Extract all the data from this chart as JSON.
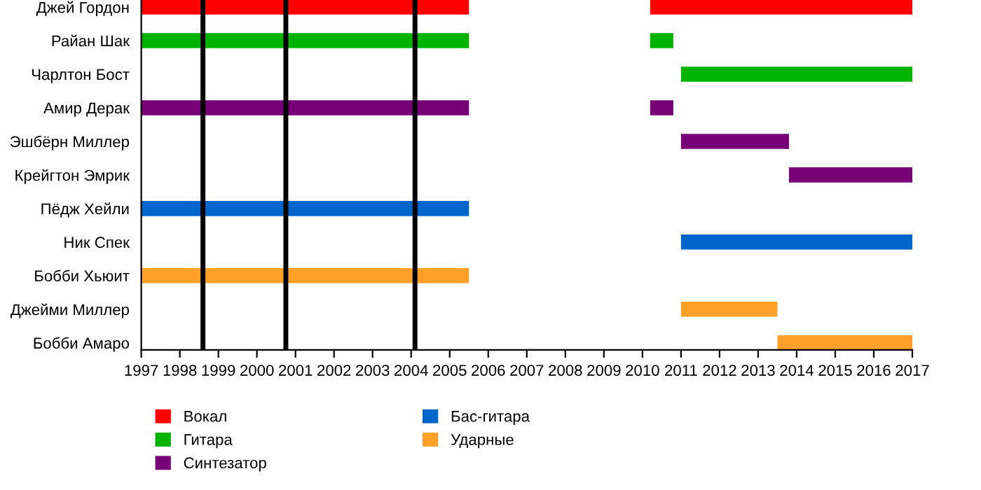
{
  "chart_data": {
    "type": "bar",
    "orientation": "horizontal",
    "categories": [
      "Джей Гордон",
      "Райан Шак",
      "Чарлтон Бост",
      "Амир Дерак",
      "Эшбёрн Миллер",
      "Крейгтон Эмрик",
      "Пёдж Хейли",
      "Ник Спек",
      "Бобби Хьюит",
      "Джейми Миллер",
      "Бобби Амаро"
    ],
    "series": [
      {
        "name": "Вокал",
        "color": "#ff0000",
        "base": [
          1997,
          null,
          null,
          null,
          null,
          null,
          null,
          null,
          null,
          null,
          null
        ],
        "values": [
          8.5,
          null,
          null,
          null,
          null,
          null,
          null,
          null,
          null,
          null,
          null
        ]
      },
      {
        "color": "#ff0000",
        "base": [
          2010.2,
          null,
          null,
          null,
          null,
          null,
          null,
          null,
          null,
          null,
          null
        ],
        "values": [
          6.8,
          null,
          null,
          null,
          null,
          null,
          null,
          null,
          null,
          null,
          null
        ]
      },
      {
        "name": "Гитара",
        "color": "#00b300",
        "base": [
          null,
          1997,
          2011,
          null,
          null,
          null,
          null,
          null,
          null,
          null,
          null
        ],
        "values": [
          null,
          8.5,
          6,
          null,
          null,
          null,
          null,
          null,
          null,
          null,
          null
        ]
      },
      {
        "color": "#00b300",
        "base": [
          null,
          2010.2,
          null,
          null,
          null,
          null,
          null,
          null,
          null,
          null,
          null
        ],
        "values": [
          null,
          0.6,
          null,
          null,
          null,
          null,
          null,
          null,
          null,
          null,
          null
        ]
      },
      {
        "name": "Синтезатор",
        "color": "#770077",
        "base": [
          null,
          null,
          null,
          1997,
          2011,
          2013.8,
          null,
          null,
          null,
          null,
          null
        ],
        "values": [
          null,
          null,
          null,
          8.5,
          2.8,
          3.2,
          null,
          null,
          null,
          null,
          null
        ]
      },
      {
        "color": "#770077",
        "base": [
          null,
          null,
          null,
          2010.2,
          null,
          null,
          null,
          null,
          null,
          null,
          null
        ],
        "values": [
          null,
          null,
          null,
          0.6,
          null,
          null,
          null,
          null,
          null,
          null,
          null
        ]
      },
      {
        "name": "Бас-гитара",
        "color": "#0066cc",
        "base": [
          null,
          null,
          null,
          null,
          null,
          null,
          1997,
          2011,
          null,
          null,
          null
        ],
        "values": [
          null,
          null,
          null,
          null,
          null,
          null,
          8.5,
          6,
          null,
          null,
          null
        ]
      },
      {
        "name": "Ударные",
        "color": "#ffa028",
        "base": [
          null,
          null,
          null,
          null,
          null,
          null,
          null,
          null,
          1997,
          2011,
          2013.5
        ],
        "values": [
          null,
          null,
          null,
          null,
          null,
          null,
          null,
          null,
          8.5,
          2.5,
          3.5
        ]
      }
    ],
    "xlim": [
      1997,
      2017
    ],
    "xticks": [
      1997,
      1998,
      1999,
      2000,
      2001,
      2002,
      2003,
      2004,
      2005,
      2006,
      2007,
      2008,
      2009,
      2010,
      2011,
      2012,
      2013,
      2014,
      2015,
      2016,
      2017
    ],
    "ref_lines": [
      {
        "axis": "x",
        "value": 1998.6,
        "color": "#000000"
      },
      {
        "axis": "x",
        "value": 2000.75,
        "color": "#000000"
      },
      {
        "axis": "x",
        "value": 2004.1,
        "color": "#000000"
      }
    ],
    "grid": false,
    "legend": "bottom"
  }
}
